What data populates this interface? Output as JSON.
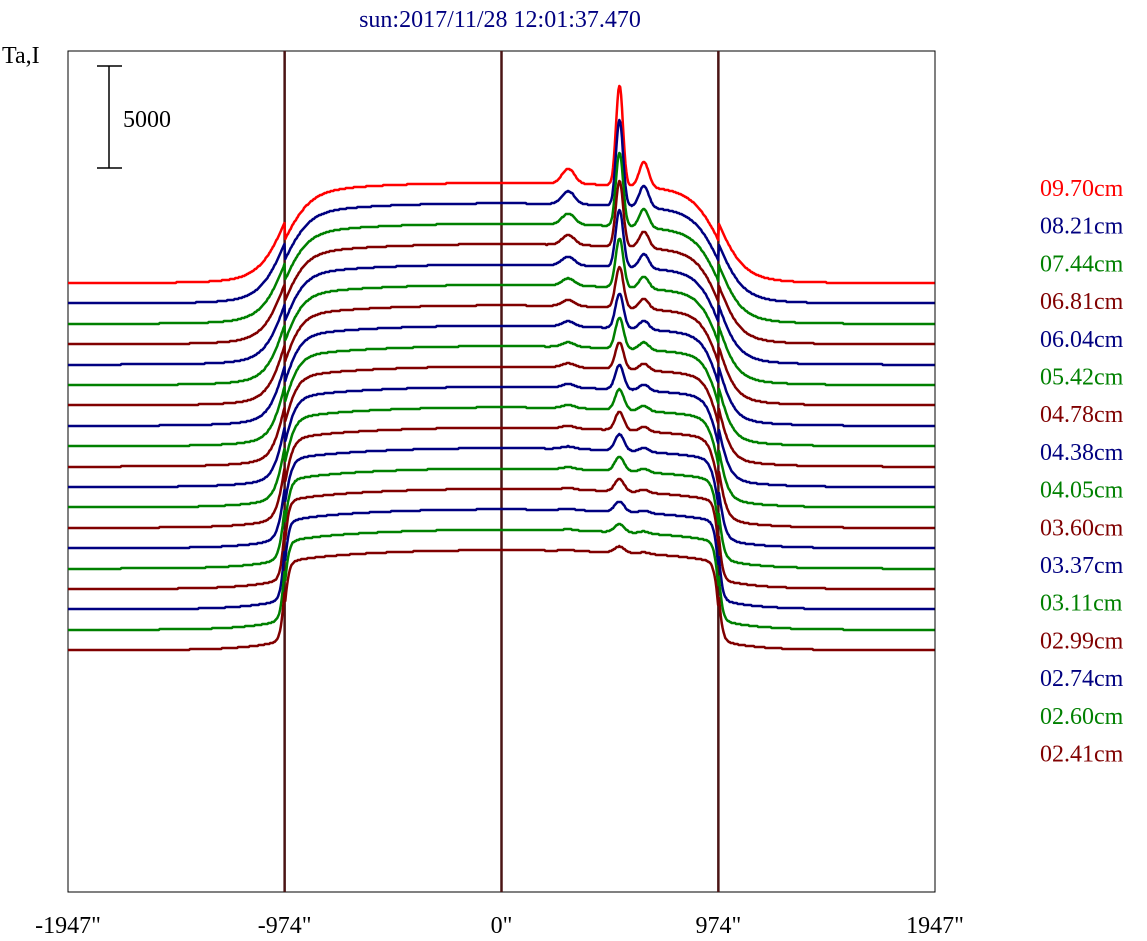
{
  "chart_data": {
    "type": "line",
    "title": "sun:2017/11/28 12:01:37.470",
    "ylabel": "Ta,I",
    "xlabel": "",
    "x_ticks": [
      {
        "value": -1947,
        "label": "-1947\""
      },
      {
        "value": -974,
        "label": "-974\""
      },
      {
        "value": 0,
        "label": "0\""
      },
      {
        "value": 974,
        "label": "974\""
      },
      {
        "value": 1947,
        "label": "1947\""
      }
    ],
    "xlim": [
      -1947,
      1947
    ],
    "vertical_lines": [
      -974,
      0,
      974
    ],
    "scale_bar": {
      "value": 5000,
      "label": "5000"
    },
    "offset_per_series": 1000,
    "legend_position": "right",
    "grid": false,
    "series": [
      {
        "name": "09.70cm",
        "color": "#ff0000",
        "peak": 4900,
        "rank": 15
      },
      {
        "name": "08.21cm",
        "color": "#000080",
        "peak": 4200,
        "rank": 14
      },
      {
        "name": "07.44cm",
        "color": "#008000",
        "peak": 3600,
        "rank": 13
      },
      {
        "name": "06.81cm",
        "color": "#800000",
        "peak": 3200,
        "rank": 12
      },
      {
        "name": "06.04cm",
        "color": "#000080",
        "peak": 2800,
        "rank": 11
      },
      {
        "name": "05.42cm",
        "color": "#008000",
        "peak": 2400,
        "rank": 10
      },
      {
        "name": "04.78cm",
        "color": "#800000",
        "peak": 2000,
        "rank": 9
      },
      {
        "name": "04.38cm",
        "color": "#000080",
        "peak": 1700,
        "rank": 8
      },
      {
        "name": "04.05cm",
        "color": "#008000",
        "peak": 1500,
        "rank": 7
      },
      {
        "name": "03.60cm",
        "color": "#800000",
        "peak": 1300,
        "rank": 6
      },
      {
        "name": "03.37cm",
        "color": "#000080",
        "peak": 1200,
        "rank": 5
      },
      {
        "name": "03.11cm",
        "color": "#008000",
        "peak": 1000,
        "rank": 4
      },
      {
        "name": "02.99cm",
        "color": "#800000",
        "peak": 900,
        "rank": 3
      },
      {
        "name": "02.74cm",
        "color": "#000080",
        "peak": 800,
        "rank": 2
      },
      {
        "name": "02.60cm",
        "color": "#008000",
        "peak": 700,
        "rank": 1
      },
      {
        "name": "02.41cm",
        "color": "#800000",
        "peak": 600,
        "rank": 0
      }
    ],
    "unlabeled_series": [
      {
        "color": "#000080",
        "peak": 500,
        "rank": -1
      },
      {
        "color": "#008000",
        "peak": 400,
        "rank": -2
      },
      {
        "color": "#800000",
        "peak": 300,
        "rank": -3
      }
    ]
  }
}
